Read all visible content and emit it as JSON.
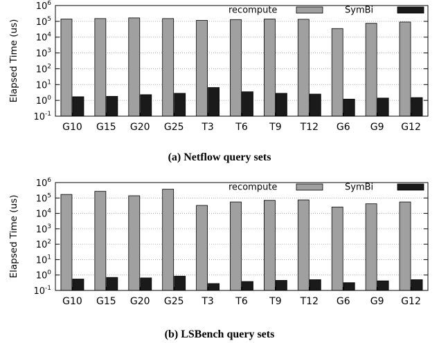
{
  "chart_data": [
    {
      "type": "bar",
      "caption": "(a) Netflow query sets",
      "ylabel": "Elapsed Time (us)",
      "yscale": "log",
      "ylim": [
        0.1,
        1000000
      ],
      "yticks": [
        {
          "base": "10",
          "exp": "-1"
        },
        {
          "base": "10",
          "exp": "0"
        },
        {
          "base": "10",
          "exp": "1"
        },
        {
          "base": "10",
          "exp": "2"
        },
        {
          "base": "10",
          "exp": "3"
        },
        {
          "base": "10",
          "exp": "4"
        },
        {
          "base": "10",
          "exp": "5"
        },
        {
          "base": "10",
          "exp": "6"
        }
      ],
      "categories": [
        "G10",
        "G15",
        "G20",
        "G25",
        "T3",
        "T6",
        "T9",
        "T12",
        "G6",
        "G9",
        "G12"
      ],
      "legend_position": "top",
      "series": [
        {
          "name": "recompute",
          "color": "#a0a0a0",
          "values": [
            140000,
            150000,
            165000,
            150000,
            115000,
            130000,
            140000,
            135000,
            35000,
            75000,
            90000
          ]
        },
        {
          "name": "SymBi",
          "color": "#1a1a1a",
          "values": [
            1.7,
            1.8,
            2.3,
            2.8,
            6.5,
            3.5,
            2.8,
            2.5,
            1.2,
            1.4,
            1.5
          ]
        }
      ]
    },
    {
      "type": "bar",
      "caption": "(b) LSBench query sets",
      "ylabel": "Elapsed Time (us)",
      "yscale": "log",
      "ylim": [
        0.1,
        1000000
      ],
      "yticks": [
        {
          "base": "10",
          "exp": "-1"
        },
        {
          "base": "10",
          "exp": "0"
        },
        {
          "base": "10",
          "exp": "1"
        },
        {
          "base": "10",
          "exp": "2"
        },
        {
          "base": "10",
          "exp": "3"
        },
        {
          "base": "10",
          "exp": "4"
        },
        {
          "base": "10",
          "exp": "5"
        },
        {
          "base": "10",
          "exp": "6"
        }
      ],
      "categories": [
        "G10",
        "G15",
        "G20",
        "G25",
        "T3",
        "T6",
        "T9",
        "T12",
        "G6",
        "G9",
        "G12"
      ],
      "legend_position": "top",
      "series": [
        {
          "name": "recompute",
          "color": "#a0a0a0",
          "values": [
            170000,
            270000,
            140000,
            370000,
            33000,
            55000,
            70000,
            75000,
            26000,
            42000,
            55000
          ]
        },
        {
          "name": "SymBi",
          "color": "#1a1a1a",
          "values": [
            0.55,
            0.7,
            0.65,
            0.85,
            0.28,
            0.38,
            0.45,
            0.5,
            0.32,
            0.42,
            0.5
          ]
        }
      ]
    }
  ]
}
